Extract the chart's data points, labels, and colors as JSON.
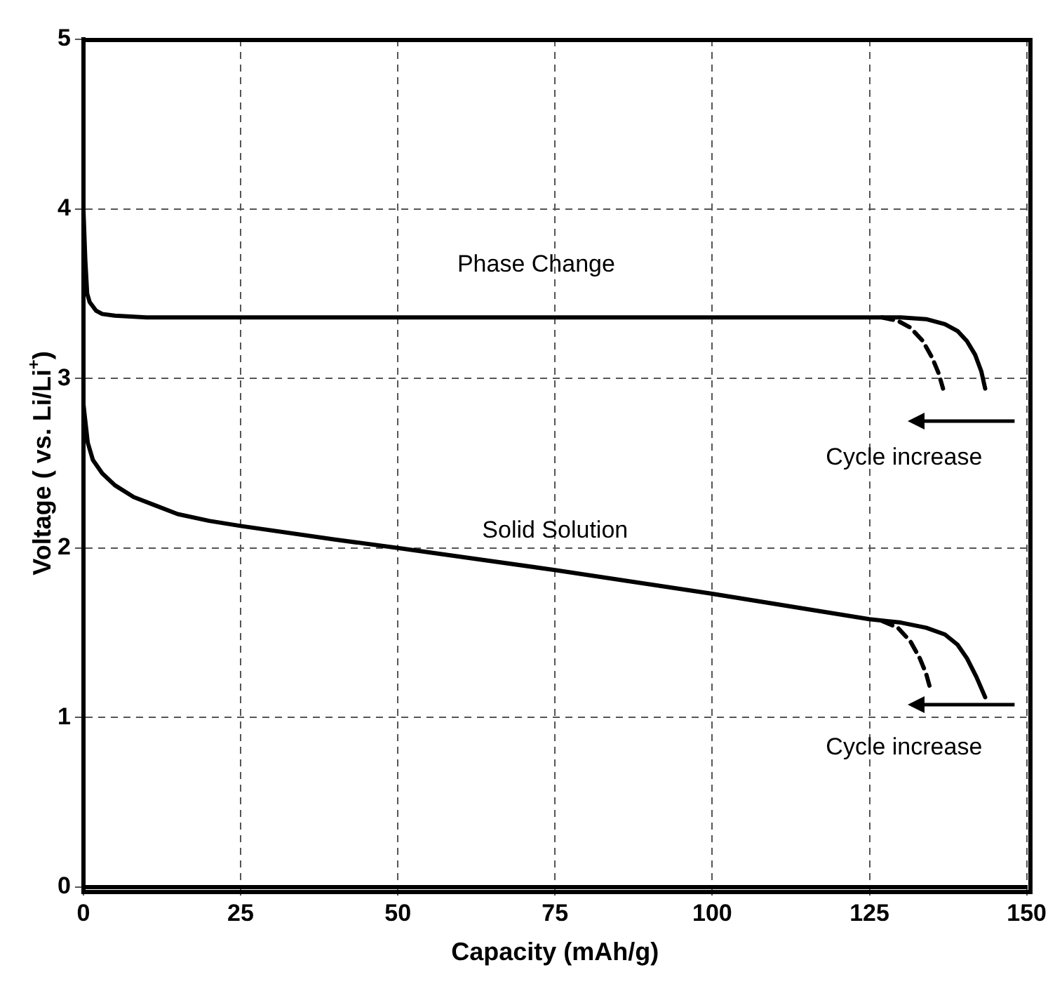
{
  "chart_data": {
    "type": "line",
    "xlabel": "Capacity (mAh/g)",
    "ylabel": "Voltage ( vs. Li/Li$^{+}$)",
    "xlim": [
      0,
      150
    ],
    "ylim": [
      0,
      5
    ],
    "xticks": [
      0,
      25,
      50,
      75,
      100,
      125,
      150
    ],
    "yticks": [
      0,
      1,
      2,
      3,
      4,
      5
    ],
    "grid": true,
    "legend": false,
    "marker": "none",
    "series": [
      {
        "color": "#000000",
        "line_style": "solid",
        "x": [
          0,
          0.3,
          0.6,
          1,
          2,
          3,
          5,
          10,
          25,
          50,
          75,
          100,
          125,
          130,
          134,
          137,
          139,
          140.5,
          141.8,
          142.8,
          143.4
        ],
        "values": [
          4.0,
          3.7,
          3.5,
          3.45,
          3.4,
          3.38,
          3.37,
          3.36,
          3.36,
          3.36,
          3.36,
          3.36,
          3.36,
          3.36,
          3.35,
          3.32,
          3.28,
          3.22,
          3.14,
          3.04,
          2.94
        ]
      },
      {
        "color": "#000000",
        "line_style": "dashed",
        "x": [
          127,
          129.5,
          131.5,
          133.5,
          135,
          136,
          136.7
        ],
        "values": [
          3.36,
          3.34,
          3.3,
          3.22,
          3.12,
          3.03,
          2.94
        ]
      },
      {
        "color": "#000000",
        "line_style": "solid",
        "x": [
          0,
          0.3,
          0.7,
          1.5,
          3,
          5,
          8,
          11.5,
          15,
          20,
          25,
          40,
          50,
          75,
          100,
          125,
          130,
          134,
          137,
          139,
          140.5,
          142,
          143.4
        ],
        "values": [
          2.85,
          2.75,
          2.62,
          2.52,
          2.44,
          2.37,
          2.3,
          2.25,
          2.2,
          2.16,
          2.13,
          2.05,
          2.0,
          1.87,
          1.73,
          1.58,
          1.56,
          1.53,
          1.49,
          1.43,
          1.35,
          1.24,
          1.12
        ]
      },
      {
        "color": "#000000",
        "line_style": "dashed",
        "x": [
          127,
          129.5,
          131.5,
          133,
          134,
          134.6
        ],
        "values": [
          1.57,
          1.53,
          1.45,
          1.35,
          1.26,
          1.18
        ]
      }
    ],
    "annotations": [
      "Phase Change",
      "Solid Solution",
      "Cycle increase",
      "Cycle increase"
    ]
  }
}
